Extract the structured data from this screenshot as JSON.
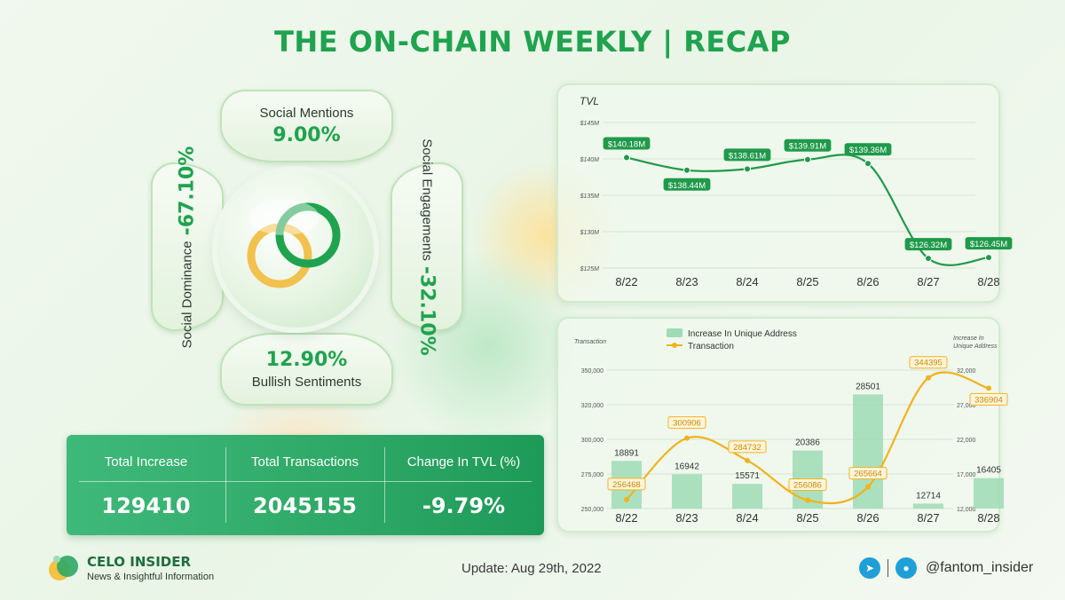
{
  "title": "THE ON-CHAIN WEEKLY | RECAP",
  "social": {
    "mentions": {
      "label": "Social Mentions",
      "value": "9.00%"
    },
    "engagements": {
      "label": "Social Engagements",
      "value": "-32.10%"
    },
    "dominance": {
      "label": "Social Dominance",
      "value": "-67.10%"
    },
    "sentiments": {
      "label": "Bullish Sentiments",
      "value": "12.90%"
    }
  },
  "summary": {
    "headers": [
      "Total Increase",
      "Total Transactions",
      "Change In TVL (%)"
    ],
    "values": [
      "129410",
      "2045155",
      "-9.79%"
    ]
  },
  "chart_data": [
    {
      "type": "line",
      "title": "TVL",
      "x": [
        "8/22",
        "8/23",
        "8/24",
        "8/25",
        "8/26",
        "8/27",
        "8/28"
      ],
      "series": [
        {
          "name": "TVL",
          "values": [
            140.18,
            138.44,
            138.61,
            139.91,
            139.36,
            126.32,
            126.45
          ]
        }
      ],
      "data_labels": [
        "$140.18M",
        "$138.44M",
        "$138.61M",
        "$139.91M",
        "$139.36M",
        "$126.32M",
        "$126.45M"
      ],
      "yticks": [
        "$125M",
        "$130M",
        "$135M",
        "$140M",
        "$145M"
      ],
      "ylim": [
        125,
        145
      ],
      "grid": true,
      "color": "#1f9a4a"
    },
    {
      "type": "bar",
      "x": [
        "8/22",
        "8/23",
        "8/24",
        "8/25",
        "8/26",
        "8/27",
        "8/28"
      ],
      "legend": [
        "Increase In Unique Address",
        "Transaction"
      ],
      "legend_position": "top",
      "ylabel_left": "Transaction",
      "ylabel_right": "Increase In Unique Address",
      "series": [
        {
          "name": "Increase In Unique Address",
          "type": "bar",
          "axis": "right",
          "values": [
            18891,
            16942,
            15571,
            20386,
            28501,
            12714,
            16405
          ]
        },
        {
          "name": "Transaction",
          "type": "line",
          "axis": "left",
          "values": [
            256468,
            300906,
            284732,
            256086,
            265664,
            344395,
            336904
          ]
        }
      ],
      "yticks_left": [
        "250,000",
        "275,000",
        "300,000",
        "320,000",
        "350,000"
      ],
      "yticks_right": [
        "12,000",
        "17,000",
        "22,000",
        "27,000",
        "32,000"
      ],
      "ylim_left": [
        250000,
        350000
      ],
      "ylim_right": [
        12000,
        32000
      ],
      "bar_color": "#9fdcb5",
      "line_color": "#f2b21b"
    }
  ],
  "footer": {
    "brand_name": "CELO INSIDER",
    "brand_tagline": "News & Insightful Information",
    "update": "Update: Aug 29th, 2022",
    "handle": "@fantom_insider",
    "icons": [
      "telegram-icon",
      "twitter-icon"
    ]
  },
  "colors": {
    "accent": "#1fa34e",
    "gold": "#f2b21b"
  }
}
